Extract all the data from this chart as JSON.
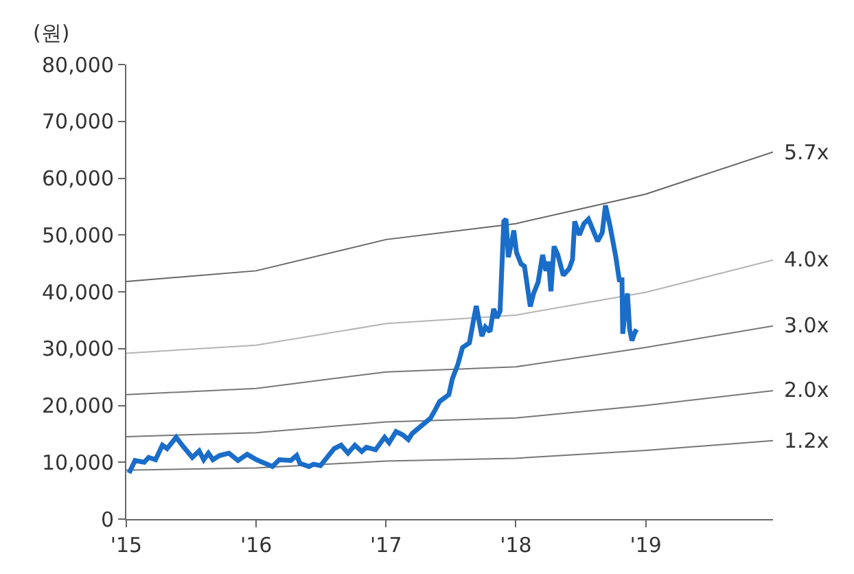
{
  "chart_data": {
    "type": "line",
    "ylabel": "(원)",
    "xlim": [
      2015,
      2019.98
    ],
    "xticks": [
      {
        "value": 2015,
        "label": "'15"
      },
      {
        "value": 2016,
        "label": "'16"
      },
      {
        "value": 2017,
        "label": "'17"
      },
      {
        "value": 2018,
        "label": "'18"
      },
      {
        "value": 2019,
        "label": "'19"
      }
    ],
    "ylim": [
      0,
      80000
    ],
    "yticks": [
      {
        "value": 0,
        "label": "0"
      },
      {
        "value": 10000,
        "label": "10,000"
      },
      {
        "value": 20000,
        "label": "20,000"
      },
      {
        "value": 30000,
        "label": "30,000"
      },
      {
        "value": 40000,
        "label": "40,000"
      },
      {
        "value": 50000,
        "label": "50,000"
      },
      {
        "value": 60000,
        "label": "60,000"
      },
      {
        "value": 70000,
        "label": "70,000"
      },
      {
        "value": 80000,
        "label": "80,000"
      }
    ],
    "legend": false,
    "marker": "none",
    "line_style": "solid",
    "series": [
      {
        "name": "5.7x",
        "color": "#666666",
        "x": [
          2015,
          2016,
          2017,
          2018,
          2019,
          2019.98
        ],
        "values": [
          41800,
          43700,
          49200,
          52000,
          57200,
          64600
        ]
      },
      {
        "name": "4.0x",
        "color": "#b4b4b4",
        "x": [
          2015,
          2016,
          2017,
          2018,
          2019,
          2019.98
        ],
        "values": [
          29200,
          30600,
          34400,
          35900,
          39900,
          45600
        ]
      },
      {
        "name": "3.0x",
        "color": "#777777",
        "x": [
          2015,
          2016,
          2017,
          2018,
          2019,
          2019.98
        ],
        "values": [
          21900,
          23000,
          25900,
          26800,
          30200,
          34000
        ]
      },
      {
        "name": "2.0x",
        "color": "#777777",
        "x": [
          2015,
          2016,
          2017,
          2018,
          2019,
          2019.98
        ],
        "values": [
          14500,
          15200,
          17100,
          17800,
          20000,
          22600
        ]
      },
      {
        "name": "1.2x",
        "color": "#777777",
        "x": [
          2015,
          2016,
          2017,
          2018,
          2019,
          2019.98
        ],
        "values": [
          8600,
          9000,
          10200,
          10700,
          12100,
          13800
        ]
      },
      {
        "color": "#1a6dc8",
        "x": [
          2015.021,
          2015.067,
          2015.138,
          2015.172,
          2015.225,
          2015.278,
          2015.314,
          2015.384,
          2015.437,
          2015.508,
          2015.561,
          2015.596,
          2015.632,
          2015.667,
          2015.72,
          2015.79,
          2015.86,
          2015.931,
          2016.002,
          2016.125,
          2016.178,
          2016.267,
          2016.312,
          2016.337,
          2016.407,
          2016.442,
          2016.495,
          2016.601,
          2016.654,
          2016.707,
          2016.76,
          2016.813,
          2016.849,
          2016.919,
          2016.989,
          2017.024,
          2017.077,
          2017.13,
          2017.172,
          2017.201,
          2017.272,
          2017.342,
          2017.378,
          2017.413,
          2017.484,
          2017.511,
          2017.553,
          2017.589,
          2017.642,
          2017.677,
          2017.695,
          2017.712,
          2017.738,
          2017.765,
          2017.801,
          2017.829,
          2017.854,
          2017.878,
          2017.907,
          2017.924,
          2017.942,
          2017.966,
          2017.984,
          2018.005,
          2018.04,
          2018.066,
          2018.111,
          2018.136,
          2018.171,
          2018.206,
          2018.231,
          2018.252,
          2018.27,
          2018.294,
          2018.323,
          2018.365,
          2018.411,
          2018.436,
          2018.453,
          2018.489,
          2018.524,
          2018.559,
          2018.595,
          2018.63,
          2018.665,
          2018.69,
          2018.725,
          2018.77,
          2018.796,
          2018.817,
          2018.823,
          2018.841,
          2018.859,
          2018.876,
          2018.894,
          2018.912,
          2018.929
        ],
        "values": [
          8100,
          10300,
          10000,
          10850,
          10450,
          13000,
          12400,
          14400,
          12800,
          10850,
          12000,
          10450,
          11600,
          10450,
          11200,
          11600,
          10300,
          11400,
          10450,
          9250,
          10450,
          10300,
          11200,
          9800,
          9250,
          9650,
          9400,
          12400,
          13000,
          11600,
          13000,
          11900,
          12650,
          12200,
          14400,
          13450,
          15400,
          14800,
          14000,
          15050,
          16400,
          17750,
          19200,
          20700,
          21900,
          24700,
          27200,
          30200,
          31000,
          35400,
          37500,
          35400,
          32200,
          33800,
          33000,
          37000,
          35400,
          36600,
          52400,
          52800,
          46100,
          48500,
          50800,
          46900,
          44900,
          44500,
          37400,
          39700,
          41700,
          46500,
          43700,
          45300,
          40100,
          48000,
          46500,
          42900,
          44100,
          45700,
          52400,
          50000,
          52000,
          52800,
          50800,
          48900,
          50400,
          55200,
          51600,
          46100,
          42100,
          42100,
          32600,
          36600,
          39700,
          33400,
          31400,
          32600,
          33400
        ]
      }
    ]
  }
}
